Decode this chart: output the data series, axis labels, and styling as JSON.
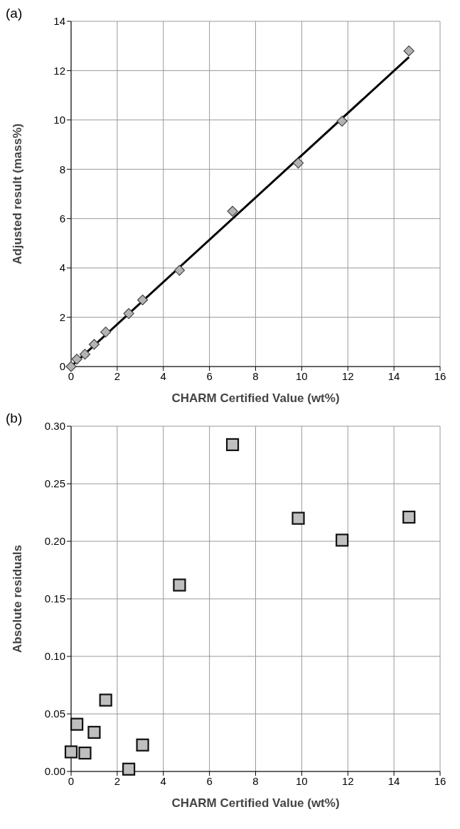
{
  "chart_data": [
    {
      "type": "scatter",
      "annotations": [
        "(a)"
      ],
      "xlabel": "CHARM Certified Value (wt%)",
      "ylabel": "Adjusted result (mass%)",
      "xlim": [
        0,
        16
      ],
      "xticks": [
        0,
        2,
        4,
        6,
        8,
        10,
        12,
        14,
        16
      ],
      "ylim": [
        0,
        14
      ],
      "yticks": [
        0,
        2,
        4,
        6,
        8,
        10,
        12,
        14
      ],
      "grid": true,
      "series": [
        {
          "marker": "diamond",
          "color": "#b3b3b3",
          "x": [
            0,
            0.25,
            0.6,
            1.0,
            1.5,
            2.5,
            3.1,
            4.7,
            7.0,
            9.85,
            11.75,
            14.65
          ],
          "values": [
            0,
            0.3,
            0.5,
            0.9,
            1.4,
            2.15,
            2.7,
            3.9,
            6.3,
            8.25,
            9.95,
            12.8
          ]
        },
        {
          "type": "line",
          "marker": "none",
          "line_style": "solid",
          "color": "#000000",
          "x": [
            0,
            14.65
          ],
          "values": [
            0,
            12.55
          ]
        }
      ]
    },
    {
      "type": "scatter",
      "annotations": [
        "(b)"
      ],
      "xlabel": "CHARM Certified Value (wt%)",
      "ylabel": "Absolute residuals",
      "xlim": [
        0,
        16
      ],
      "xticks": [
        0,
        2,
        4,
        6,
        8,
        10,
        12,
        14,
        16
      ],
      "ylim": [
        0,
        0.3
      ],
      "yticks": [
        {
          "value": 0,
          "label": "0.00"
        },
        {
          "value": 0.05,
          "label": "0.05"
        },
        {
          "value": 0.1,
          "label": "0.10"
        },
        {
          "value": 0.15,
          "label": "0.15"
        },
        {
          "value": 0.2,
          "label": "0.20"
        },
        {
          "value": 0.25,
          "label": "0.25"
        },
        {
          "value": 0.3,
          "label": "0.30"
        }
      ],
      "grid": true,
      "series": [
        {
          "marker": "square",
          "color": "#bfbfbf",
          "x": [
            0,
            0.25,
            0.6,
            1.0,
            1.5,
            2.5,
            3.1,
            4.7,
            7.0,
            9.85,
            11.75,
            14.65
          ],
          "values": [
            0.017,
            0.041,
            0.016,
            0.034,
            0.062,
            0.002,
            0.023,
            0.162,
            0.284,
            0.22,
            0.201,
            0.221
          ]
        }
      ]
    }
  ]
}
